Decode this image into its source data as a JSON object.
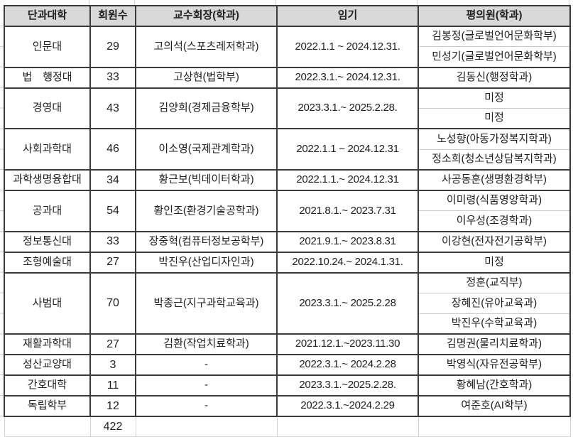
{
  "table": {
    "headers": [
      "단과대학",
      "회원수",
      "교수회장(학과)",
      "임기",
      "평의원(학과)"
    ],
    "groups": [
      {
        "college": "인문대",
        "members": "29",
        "chair": "고의석(스포츠레저학과)",
        "term": "2022.1.1 ~ 2024.12.31.",
        "delegates": [
          "김봉정(글로벌언어문화학부)",
          "민성기(글로벌언어문화학부)"
        ]
      },
      {
        "college": "법　행정대",
        "members": "33",
        "chair": "고상현(법학부)",
        "term": "2022.3.1.~ 2024.12.31.",
        "delegates": [
          "김동신(행정학과)"
        ]
      },
      {
        "college": "경영대",
        "members": "43",
        "chair": "김양희(경제금융학부)",
        "term": "2023.3.1.~ 2025.2.28.",
        "delegates": [
          "미정",
          "미정"
        ]
      },
      {
        "college": "사회과학대",
        "members": "46",
        "chair": "이소영(국제관계학과)",
        "term": "2022.1.1 ~ 2024.12.31",
        "delegates": [
          "노성향(아동가정복지학과)",
          "정소희(청소년상담복지학과)"
        ]
      },
      {
        "college": "과학생명융합대",
        "members": "34",
        "chair": "황근보(빅데이터학과)",
        "term": "2022.1.1.~ 2024.12.31",
        "delegates": [
          "사공동훈(생명환경학부)"
        ]
      },
      {
        "college": "공과대",
        "members": "54",
        "chair": "황인조(환경기술공학과)",
        "term": "2021.8.1.~ 2023.7.31",
        "delegates": [
          "이미령(식품영양학과)",
          "이우성(조경학과)"
        ]
      },
      {
        "college": "정보통신대",
        "members": "33",
        "chair": "장중혁(컴퓨터정보공학부)",
        "term": "2021.9.1.~ 2023.8.31",
        "delegates": [
          "이강현(전자전기공학부)"
        ]
      },
      {
        "college": "조형예술대",
        "members": "27",
        "chair": "박진우(산업디자인과)",
        "term": "2022.10.24.~ 2024.1.31.",
        "delegates": [
          "미정"
        ]
      },
      {
        "college": "사범대",
        "members": "70",
        "chair": "박종근(지구과학교육과)",
        "term": "2023.3.1.~ 2025.2.28",
        "delegates": [
          "정훈(교직부)",
          "장혜진(유아교육과)",
          "박진우(수학교육과)"
        ]
      },
      {
        "college": "재활과학대",
        "members": "27",
        "chair": "김환(작업치료학과)",
        "term": "2021.12.1.~2023.11.30",
        "delegates": [
          "김명권(물리치료학과)"
        ]
      },
      {
        "college": "성산교양대",
        "members": "3",
        "chair": "-",
        "term": "2022.3.1.~ 2024.2.28",
        "delegates": [
          "박영식(자유전공학부)"
        ]
      },
      {
        "college": "간호대학",
        "members": "11",
        "chair": "-",
        "term": "2023.3.1.~2025.2.28.",
        "delegates": [
          "황혜남(간호학과)"
        ]
      },
      {
        "college": "독립학부",
        "members": "12",
        "chair": "-",
        "term": "2022.3.1.~2024.2.29",
        "delegates": [
          "여준호(AI학부)"
        ]
      }
    ],
    "total_members": "422"
  },
  "colors": {
    "border_dark": "#3b3b3b",
    "border_light": "#c9c9c9",
    "header_bg": "#d9d9d9",
    "text": "#202020"
  }
}
